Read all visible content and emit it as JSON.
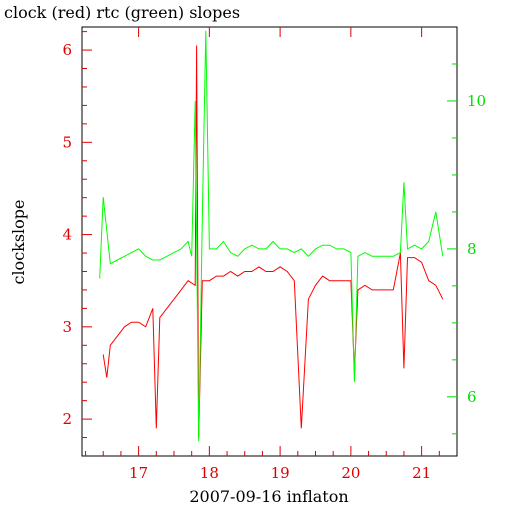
{
  "chart_data": {
    "type": "line",
    "title": "clock (red) rtc (green) slopes",
    "xlabel": "2007-09-16 inflaton",
    "ylabel": "clockslope",
    "xlim": [
      16.2,
      21.5
    ],
    "ylim_left": [
      1.6,
      6.25
    ],
    "ylim_right": [
      5.2,
      11.0
    ],
    "x_ticks": [
      17,
      18,
      19,
      20,
      21
    ],
    "y_ticks_left": [
      2,
      3,
      4,
      5,
      6
    ],
    "y_ticks_right": [
      6,
      8,
      10
    ],
    "colors": {
      "left_axis": "#dd0000",
      "right_axis": "#00dd00",
      "clock": "#ff0000",
      "rtc": "#00ff00"
    },
    "grid": false,
    "series": [
      {
        "name": "clock",
        "axis": "left",
        "x": [
          16.5,
          16.55,
          16.6,
          16.7,
          16.8,
          16.9,
          17.0,
          17.1,
          17.2,
          17.25,
          17.3,
          17.4,
          17.5,
          17.6,
          17.7,
          17.8,
          17.82,
          17.85,
          17.9,
          18.0,
          18.1,
          18.2,
          18.3,
          18.4,
          18.5,
          18.6,
          18.7,
          18.8,
          18.9,
          19.0,
          19.1,
          19.2,
          19.3,
          19.4,
          19.5,
          19.6,
          19.7,
          19.8,
          19.9,
          20.0,
          20.05,
          20.1,
          20.2,
          20.3,
          20.4,
          20.5,
          20.6,
          20.7,
          20.75,
          20.8,
          20.9,
          21.0,
          21.1,
          21.2,
          21.3
        ],
        "y": [
          2.7,
          2.45,
          2.8,
          2.9,
          3.0,
          3.05,
          3.05,
          3.0,
          3.2,
          1.9,
          3.1,
          3.2,
          3.3,
          3.4,
          3.5,
          3.45,
          6.05,
          1.8,
          3.5,
          3.5,
          3.55,
          3.55,
          3.6,
          3.55,
          3.6,
          3.6,
          3.65,
          3.6,
          3.6,
          3.65,
          3.6,
          3.5,
          1.9,
          3.3,
          3.45,
          3.55,
          3.5,
          3.5,
          3.5,
          3.5,
          2.5,
          3.4,
          3.45,
          3.4,
          3.4,
          3.4,
          3.4,
          3.8,
          2.55,
          3.75,
          3.75,
          3.7,
          3.5,
          3.45,
          3.3
        ]
      },
      {
        "name": "rtc",
        "axis": "right",
        "x": [
          16.45,
          16.5,
          16.6,
          16.7,
          16.8,
          16.9,
          17.0,
          17.1,
          17.2,
          17.3,
          17.4,
          17.5,
          17.6,
          17.7,
          17.75,
          17.8,
          17.85,
          17.9,
          17.95,
          18.0,
          18.1,
          18.2,
          18.3,
          18.4,
          18.5,
          18.6,
          18.7,
          18.8,
          18.9,
          19.0,
          19.1,
          19.2,
          19.3,
          19.4,
          19.5,
          19.6,
          19.7,
          19.8,
          19.9,
          20.0,
          20.05,
          20.1,
          20.2,
          20.3,
          20.4,
          20.5,
          20.6,
          20.7,
          20.75,
          20.8,
          20.9,
          21.0,
          21.1,
          21.2,
          21.3
        ],
        "y": [
          7.6,
          8.7,
          7.8,
          7.85,
          7.9,
          7.95,
          8.0,
          7.9,
          7.85,
          7.85,
          7.9,
          7.95,
          8.0,
          8.1,
          7.9,
          10.0,
          5.4,
          8.4,
          10.95,
          8.0,
          8.0,
          8.1,
          7.95,
          7.9,
          8.0,
          8.05,
          8.0,
          8.0,
          8.1,
          8.0,
          8.0,
          7.95,
          8.0,
          7.9,
          8.0,
          8.05,
          8.05,
          8.0,
          8.0,
          7.95,
          6.2,
          7.9,
          7.95,
          7.9,
          7.9,
          7.9,
          7.9,
          7.95,
          8.9,
          8.0,
          8.05,
          8.0,
          8.1,
          8.5,
          7.9
        ]
      }
    ]
  }
}
